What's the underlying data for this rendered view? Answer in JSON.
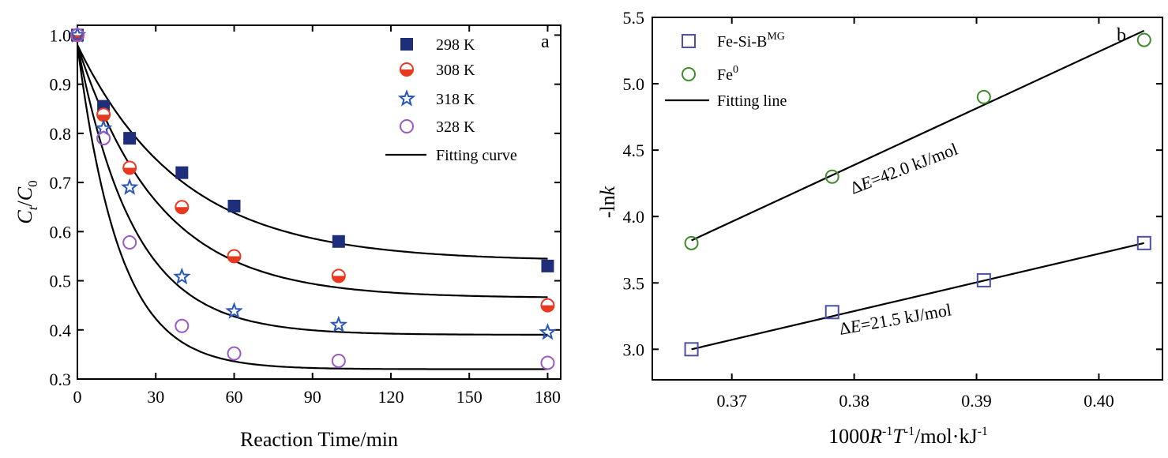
{
  "chart_data": [
    {
      "type": "scatter",
      "panel_label": "a",
      "xlabel": "Reaction Time/min",
      "ylabel": {
        "main": "C",
        "sub_t": "t",
        "slash": "/",
        "main2": "C",
        "sub_0": "0"
      },
      "xlim": [
        0,
        185
      ],
      "ylim": [
        0.3,
        1.02
      ],
      "xticks": [
        0,
        30,
        60,
        90,
        120,
        150,
        180
      ],
      "yticks": [
        0.3,
        0.4,
        0.5,
        0.6,
        0.7,
        0.8,
        0.9,
        1.0
      ],
      "ytick_labels": [
        "0.3",
        "0.4",
        "0.5",
        "0.6",
        "0.7",
        "0.8",
        "0.9",
        "1.0"
      ],
      "x": [
        0,
        10,
        20,
        40,
        60,
        100,
        180
      ],
      "series": [
        {
          "name": "298 K",
          "marker": "square",
          "color": "#1f2e7a",
          "values": [
            1.0,
            0.855,
            0.79,
            0.72,
            0.652,
            0.58,
            0.53
          ],
          "fit": {
            "c_inf": 0.54,
            "k": 0.025
          }
        },
        {
          "name": "308 K",
          "marker": "half-circle",
          "color": "#e8381f",
          "values": [
            1.0,
            0.838,
            0.73,
            0.65,
            0.55,
            0.51,
            0.45
          ],
          "fit": {
            "c_inf": 0.465,
            "k": 0.032
          }
        },
        {
          "name": "318 K",
          "marker": "star",
          "color": "#2a55b8",
          "values": [
            1.0,
            0.81,
            0.69,
            0.508,
            0.438,
            0.41,
            0.395
          ],
          "fit": {
            "c_inf": 0.39,
            "k": 0.046
          }
        },
        {
          "name": "328 K",
          "marker": "open-circle",
          "color": "#9b59c6",
          "values": [
            1.0,
            0.79,
            0.578,
            0.408,
            0.352,
            0.337,
            0.333
          ],
          "fit": {
            "c_inf": 0.32,
            "k": 0.062
          }
        }
      ],
      "fit_name": "Fitting curve",
      "legend_position": "top-right"
    },
    {
      "type": "scatter",
      "panel_label": "b",
      "xlabel": {
        "pre": "1000",
        "R": "R",
        "R_sup": "-1",
        "T": "T",
        "T_sup": "-1",
        "post": "/mol·kJ",
        "post_sup": "-1"
      },
      "ylabel": {
        "pre": "-ln",
        "k": "k"
      },
      "xlim": [
        0.3635,
        0.4052
      ],
      "ylim": [
        2.77,
        5.5
      ],
      "xticks": [
        0.37,
        0.38,
        0.39,
        0.4
      ],
      "xtick_labels": [
        "0.37",
        "0.38",
        "0.39",
        "0.40"
      ],
      "yticks": [
        3.0,
        3.5,
        4.0,
        4.5,
        5.0,
        5.5
      ],
      "ytick_labels": [
        "3.0",
        "3.5",
        "4.0",
        "4.5",
        "5.0",
        "5.5"
      ],
      "series": [
        {
          "name_main": "Fe-Si-B",
          "name_sup": "MG",
          "marker": "open-square",
          "color": "#4a4fa8",
          "x": [
            0.3667,
            0.3782,
            0.3906,
            0.4037
          ],
          "y": [
            3.0,
            3.28,
            3.52,
            3.8
          ],
          "fit": {
            "x0": 0.3667,
            "y0": 3.0,
            "x1": 0.4037,
            "y1": 3.8
          },
          "annotation": {
            "delta": "Δ",
            "E": "E",
            "value": "=21.5 kJ/mol"
          }
        },
        {
          "name_main": "Fe",
          "name_sup": "0",
          "marker": "open-circle",
          "color": "#3f8a2a",
          "x": [
            0.3667,
            0.3782,
            0.3906,
            0.4037
          ],
          "y": [
            3.8,
            4.3,
            4.9,
            5.33
          ],
          "fit": {
            "x0": 0.3667,
            "y0": 3.82,
            "x1": 0.4037,
            "y1": 5.4
          },
          "annotation": {
            "delta": "Δ",
            "E": "E",
            "value": "=42.0 kJ/mol"
          }
        }
      ],
      "fit_name": "Fitting line",
      "legend_position": "top-left"
    }
  ]
}
